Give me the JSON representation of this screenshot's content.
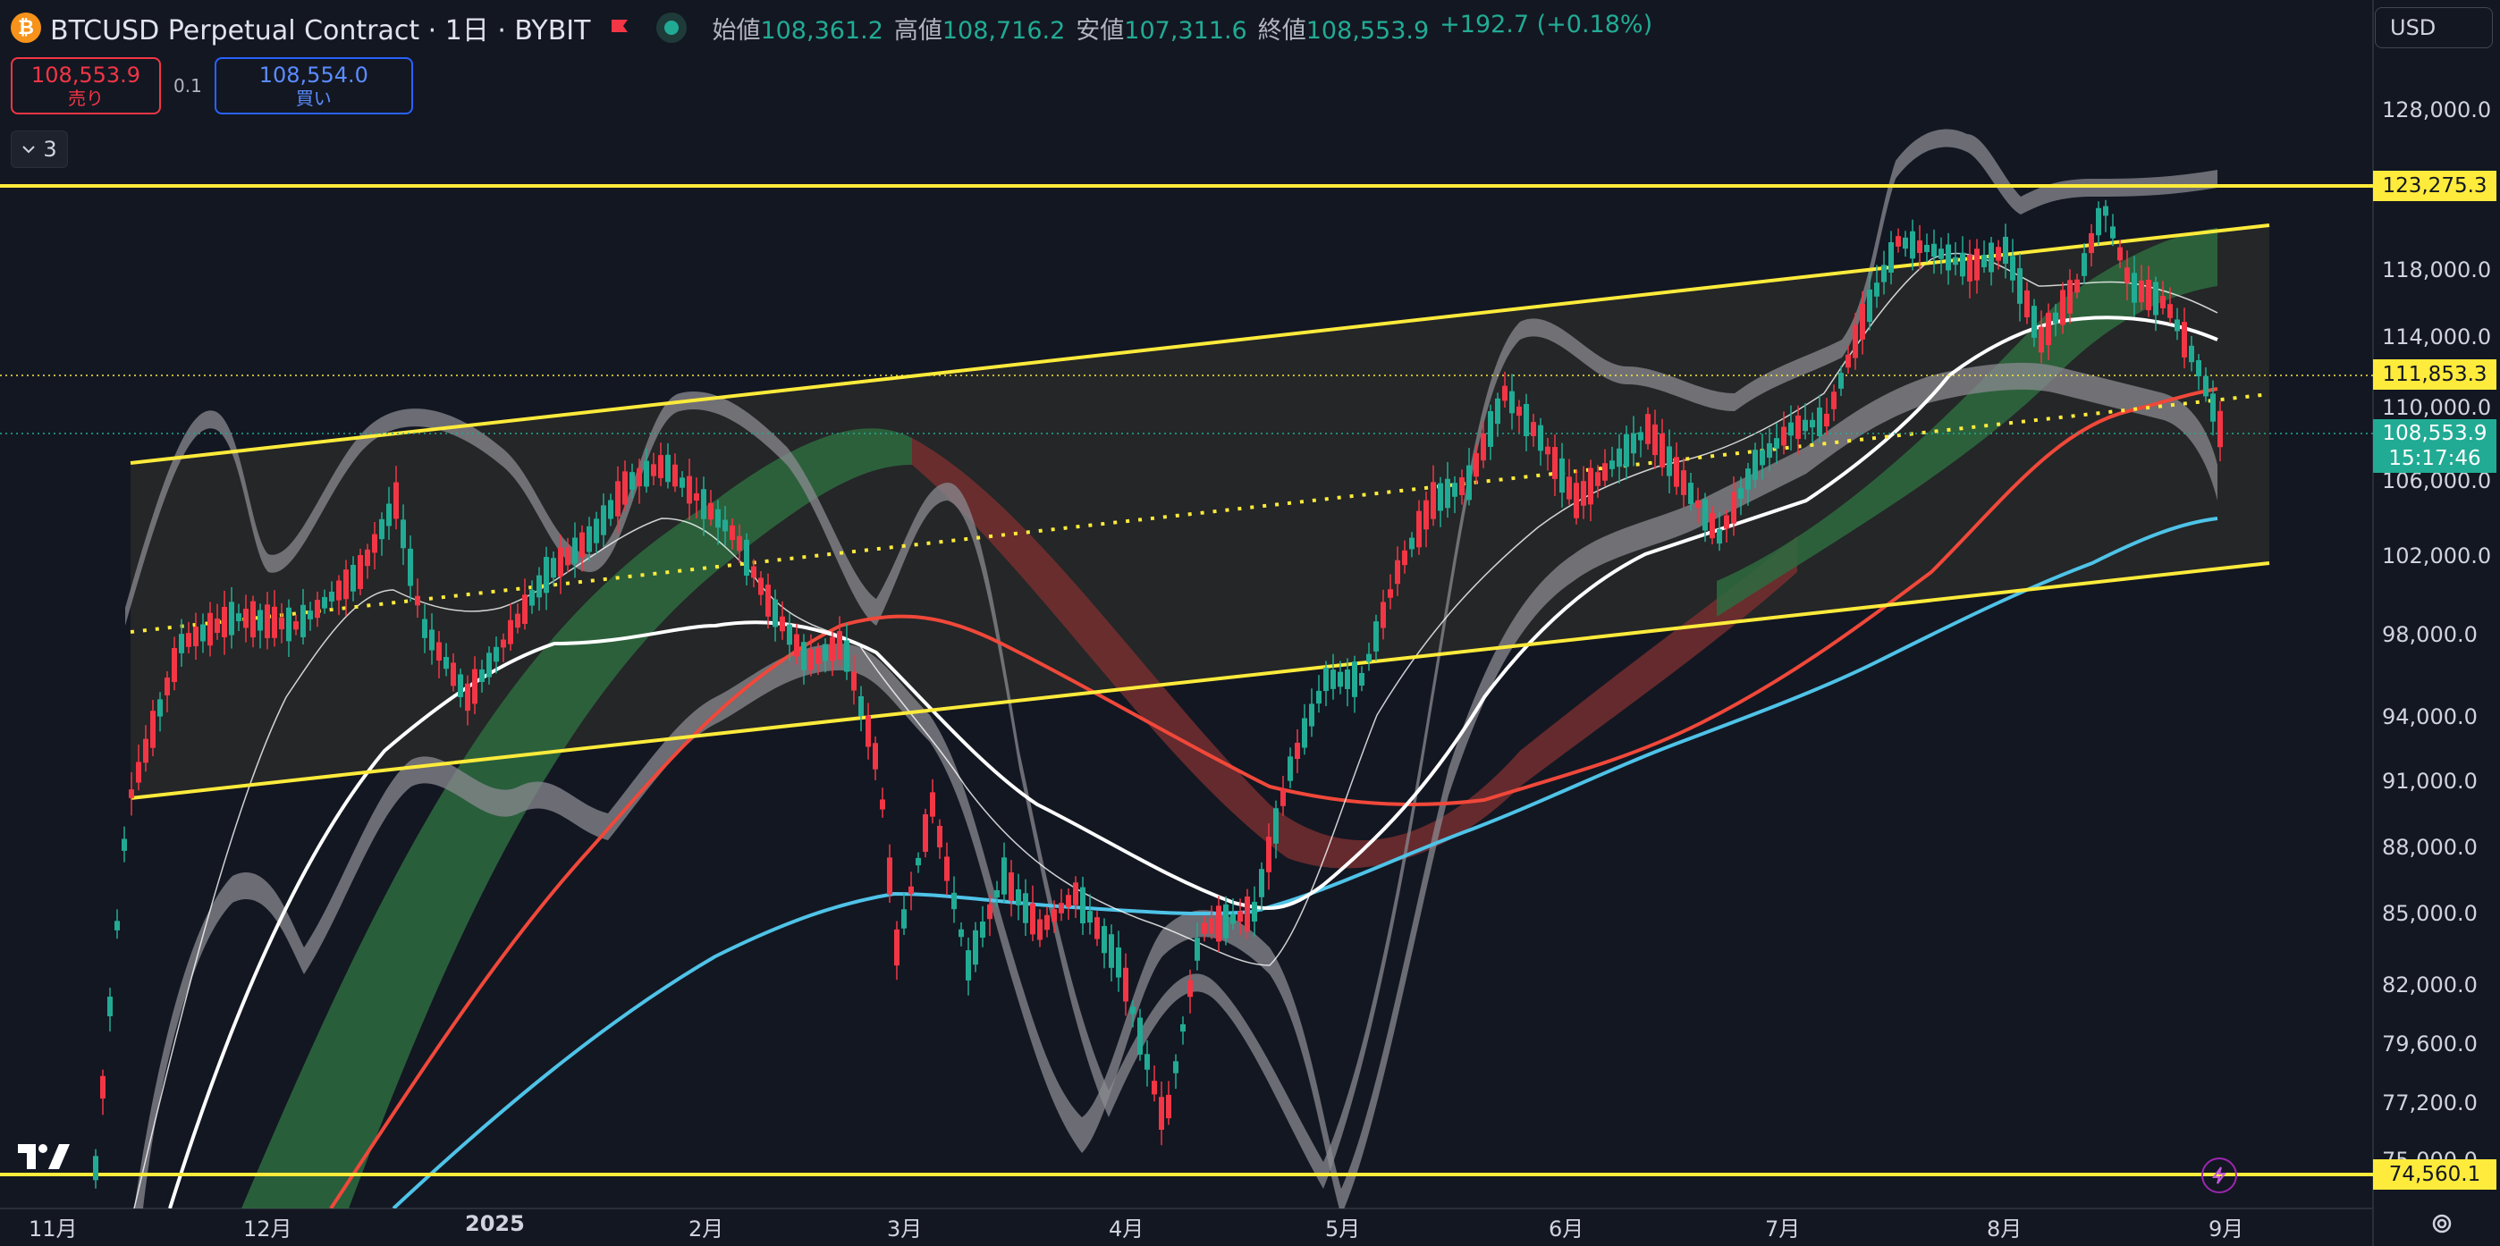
{
  "header": {
    "logo_glyph": "₿",
    "symbol_title": "BTCUSD Perpetual Contract · 1日 · BYBIT",
    "ohlc": [
      {
        "label": "始値",
        "value": "108,361.2"
      },
      {
        "label": "高値",
        "value": "108,716.2"
      },
      {
        "label": "安値",
        "value": "107,311.6"
      },
      {
        "label": "終値",
        "value": "108,553.9"
      }
    ],
    "change": "+192.7 (+0.18%)"
  },
  "currency": {
    "label": "USD"
  },
  "trade": {
    "sell_price": "108,553.9",
    "sell_label": "売り",
    "spread": "0.1",
    "buy_price": "108,554.0",
    "buy_label": "買い"
  },
  "indicators_toggle": {
    "count": "3"
  },
  "price_axis": [
    {
      "label": "128,000.0",
      "price": 128000
    },
    {
      "label": "118,000.0",
      "price": 118000
    },
    {
      "label": "114,000.0",
      "price": 114000
    },
    {
      "label": "110,000.0",
      "price": 110000
    },
    {
      "label": "106,000.0",
      "price": 106000
    },
    {
      "label": "102,000.0",
      "price": 102000
    },
    {
      "label": "98,000.0",
      "price": 98000
    },
    {
      "label": "94,000.0",
      "price": 94000
    },
    {
      "label": "91,000.0",
      "price": 91000
    },
    {
      "label": "88,000.0",
      "price": 88000
    },
    {
      "label": "85,000.0",
      "price": 85000
    },
    {
      "label": "82,000.0",
      "price": 82000
    },
    {
      "label": "79,600.0",
      "price": 79600
    },
    {
      "label": "77,200.0",
      "price": 77200
    },
    {
      "label": "75,000.0",
      "price": 75000
    }
  ],
  "price_tags": {
    "resistance": "123,275.3",
    "midline": "111,853.3",
    "current_price": "108,553.9",
    "countdown": "15:17:46",
    "support": "74,560.1"
  },
  "time_axis": [
    {
      "label": "11月",
      "bold": false
    },
    {
      "label": "12月",
      "bold": false
    },
    {
      "label": "2025",
      "bold": true
    },
    {
      "label": "2月",
      "bold": false
    },
    {
      "label": "3月",
      "bold": false
    },
    {
      "label": "4月",
      "bold": false
    },
    {
      "label": "5月",
      "bold": false
    },
    {
      "label": "6月",
      "bold": false
    },
    {
      "label": "7月",
      "bold": false
    },
    {
      "label": "8月",
      "bold": false
    },
    {
      "label": "9月",
      "bold": false
    }
  ],
  "colors": {
    "background": "#131722",
    "up": "#22ab94",
    "down": "#f23645",
    "channel": "#ffeb3b",
    "ma_red": "#f0483a",
    "ma_blue": "#4fc3e8",
    "band_gray": "#9a9aa0"
  },
  "icons": [
    "bitcoin-logo",
    "flag-icon",
    "market-status-icon",
    "chevron-down-icon",
    "tradingview-logo",
    "bolt-icon",
    "gear-icon"
  ]
}
